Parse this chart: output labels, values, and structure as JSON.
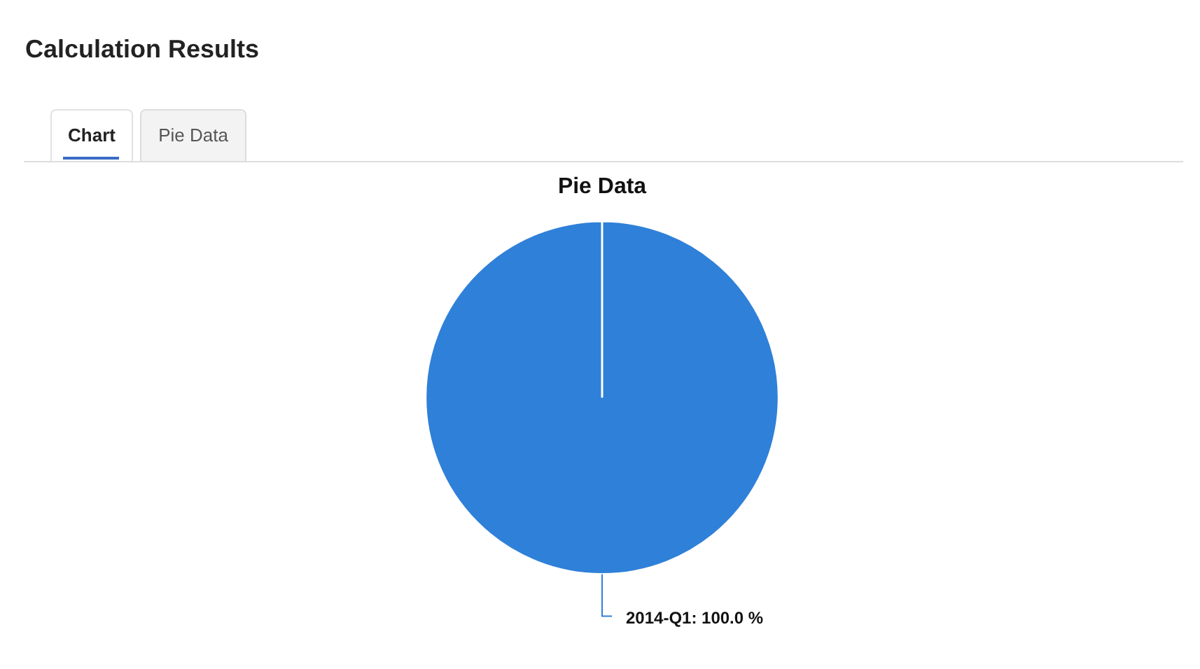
{
  "chart_data": {
    "type": "pie",
    "title": "Pie Data",
    "categories": [
      "2014-Q1"
    ],
    "values": [
      100
    ],
    "colors": [
      "#2f80d8"
    ],
    "value_labels": [
      "100.0 %"
    ],
    "legend": false,
    "annotations": [
      "Calculation Results",
      "Chart",
      "Pie Data"
    ]
  }
}
